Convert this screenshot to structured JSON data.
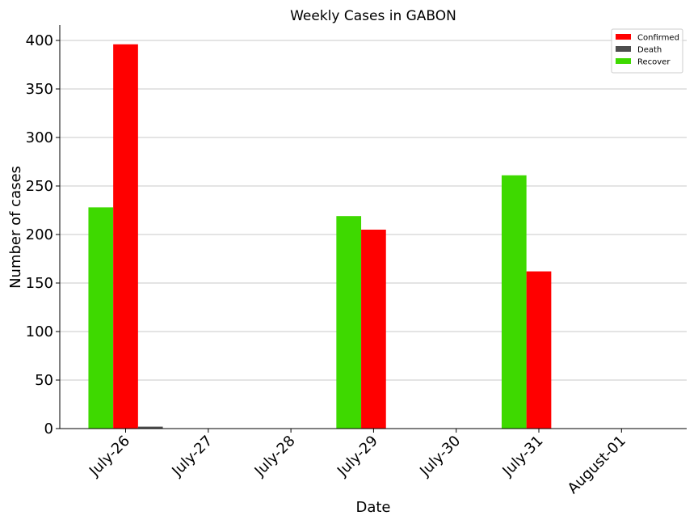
{
  "chart_data": {
    "type": "bar",
    "title": "Weekly Cases in GABON",
    "xlabel": "Date",
    "ylabel": "Number of cases",
    "categories": [
      "July-26",
      "July-27",
      "July-28",
      "July-29",
      "July-30",
      "July-31",
      "August-01"
    ],
    "series": [
      {
        "name": "Recover",
        "color": "#3ed900",
        "values": [
          228,
          0,
          0,
          219,
          0,
          261,
          0
        ]
      },
      {
        "name": "Confirmed",
        "color": "#ff0000",
        "values": [
          396,
          0,
          0,
          205,
          0,
          162,
          0
        ]
      },
      {
        "name": "Death",
        "color": "#4d4d4d",
        "values": [
          2,
          0,
          0,
          0,
          0,
          0,
          0
        ]
      }
    ],
    "legend_order": [
      "Confirmed",
      "Death",
      "Recover"
    ],
    "ylim": [
      0,
      415
    ],
    "yticks": [
      0,
      50,
      100,
      150,
      200,
      250,
      300,
      350,
      400
    ],
    "grid": "horizontal",
    "legend_position": "top-right"
  }
}
